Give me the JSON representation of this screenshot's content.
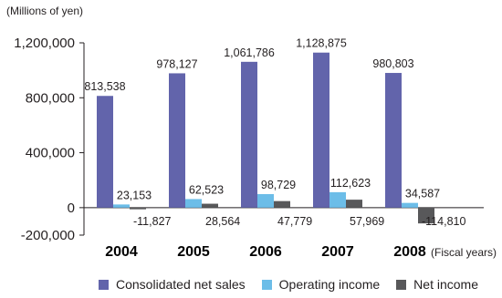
{
  "chart_data": {
    "type": "bar",
    "unit_label": "(Millions of yen)",
    "x_suffix_label": "(Fiscal years)",
    "categories": [
      "2004",
      "2005",
      "2006",
      "2007",
      "2008"
    ],
    "ylim": [
      -200000,
      1200000
    ],
    "yticks": [
      -200000,
      0,
      400000,
      800000,
      1200000
    ],
    "ytick_labels": [
      "-200,000",
      "0",
      "400,000",
      "800,000",
      "1,200,000"
    ],
    "grid": false,
    "legend_position": "bottom",
    "series": [
      {
        "name": "Consolidated net sales",
        "color": "#6264ab",
        "values": [
          813538,
          978127,
          1061786,
          1128875,
          980803
        ],
        "labels": [
          "813,538",
          "978,127",
          "1,061,786",
          "1,128,875",
          "980,803"
        ]
      },
      {
        "name": "Operating income",
        "color": "#6cbde8",
        "values": [
          23153,
          62523,
          98729,
          112623,
          34587
        ],
        "labels": [
          "23,153",
          "62,523",
          "98,729",
          "112,623",
          "34,587"
        ]
      },
      {
        "name": "Net income",
        "color": "#58585a",
        "values": [
          -11827,
          28564,
          47779,
          57969,
          -114810
        ],
        "labels": [
          "-11,827",
          "28,564",
          "47,779",
          "57,969",
          "-114,810"
        ]
      }
    ]
  }
}
